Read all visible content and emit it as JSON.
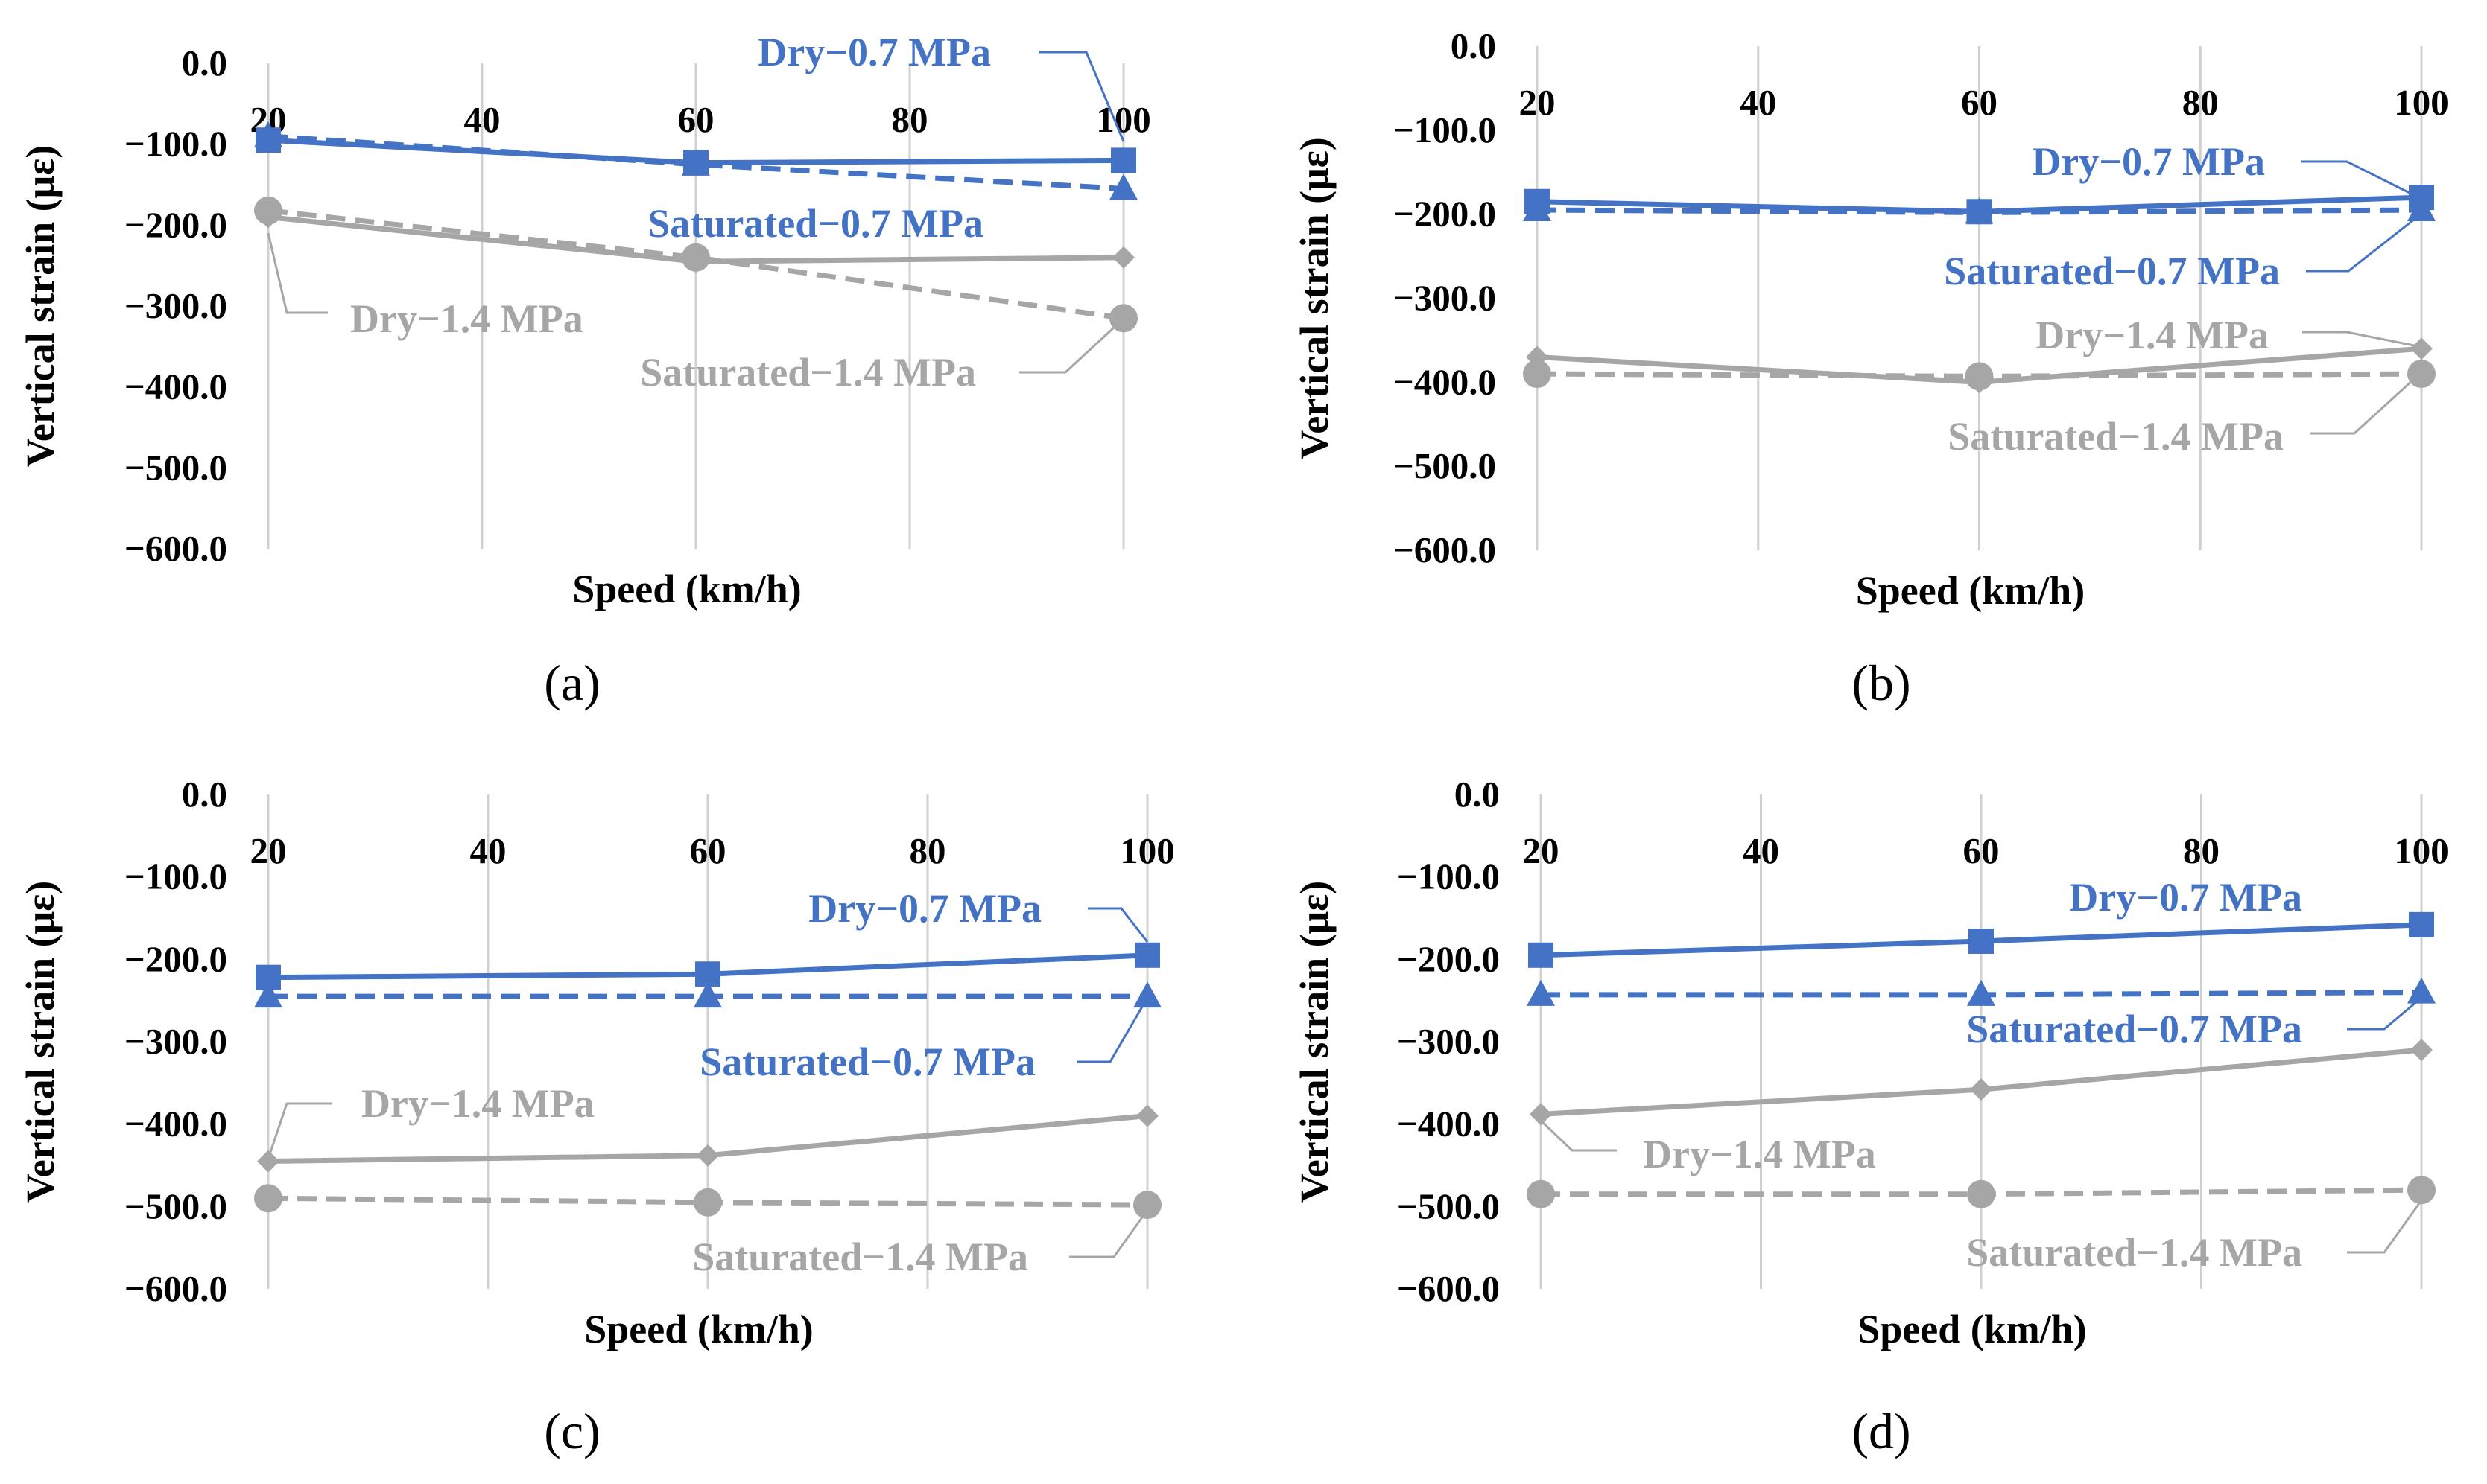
{
  "chart_data": [
    {
      "type": "line",
      "label": "(a)",
      "xlabel": "Speed (km/h)",
      "ylabel": "Vertical strain (με)",
      "xticks": [
        "20",
        "40",
        "60",
        "80",
        "100"
      ],
      "yticks": [
        "0.0",
        "-100.0",
        "-200.0",
        "-300.0",
        "-400.0",
        "-500.0",
        "-600.0"
      ],
      "xlim": [
        20,
        100
      ],
      "ylim": [
        -600,
        0
      ],
      "x": [
        20,
        60,
        100
      ],
      "series": [
        {
          "name": "Dry−0.7 MPa",
          "color": "#4472C4",
          "dash": "solid",
          "marker": "square",
          "values": [
            -95,
            -123,
            -120
          ]
        },
        {
          "name": "Saturated−0.7 MPa",
          "color": "#4472C4",
          "dash": "dashed",
          "marker": "triangle",
          "values": [
            -90,
            -125,
            -155
          ]
        },
        {
          "name": "Dry−1.4 MPa",
          "color": "#A6A6A6",
          "dash": "solid",
          "marker": "diamond",
          "values": [
            -190,
            -245,
            -240
          ]
        },
        {
          "name": "Saturated−1.4 MPa",
          "color": "#A6A6A6",
          "dash": "dashed",
          "marker": "circle",
          "values": [
            -182,
            -240,
            -315
          ]
        }
      ]
    },
    {
      "type": "line",
      "label": "(b)",
      "xlabel": "Speed (km/h)",
      "ylabel": "Vertical strain (με)",
      "xticks": [
        "20",
        "40",
        "60",
        "80",
        "100"
      ],
      "yticks": [
        "0.0",
        "-100.0",
        "-200.0",
        "-300.0",
        "-400.0",
        "-500.0",
        "-600.0"
      ],
      "xlim": [
        20,
        100
      ],
      "ylim": [
        -600,
        0
      ],
      "x": [
        20,
        60,
        100
      ],
      "series": [
        {
          "name": "Dry−0.7 MPa",
          "color": "#4472C4",
          "dash": "solid",
          "marker": "square",
          "values": [
            -185,
            -197,
            -180
          ]
        },
        {
          "name": "Saturated−0.7 MPa",
          "color": "#4472C4",
          "dash": "dashed",
          "marker": "triangle",
          "values": [
            -195,
            -198,
            -195
          ]
        },
        {
          "name": "Dry−1.4 MPa",
          "color": "#A6A6A6",
          "dash": "solid",
          "marker": "diamond",
          "values": [
            -370,
            -400,
            -360
          ]
        },
        {
          "name": "Saturated−1.4 MPa",
          "color": "#A6A6A6",
          "dash": "dashed",
          "marker": "circle",
          "values": [
            -390,
            -393,
            -390
          ]
        }
      ]
    },
    {
      "type": "line",
      "label": "(c)",
      "xlabel": "Speed (km/h)",
      "ylabel": "Vertical strain (με)",
      "xticks": [
        "20",
        "40",
        "60",
        "80",
        "100"
      ],
      "yticks": [
        "0.0",
        "-100.0",
        "-200.0",
        "-300.0",
        "-400.0",
        "-500.0",
        "-600.0"
      ],
      "xlim": [
        20,
        100
      ],
      "ylim": [
        -600,
        0
      ],
      "x": [
        20,
        60,
        100
      ],
      "series": [
        {
          "name": "Dry−0.7 MPa",
          "color": "#4472C4",
          "dash": "solid",
          "marker": "square",
          "values": [
            -222,
            -218,
            -195
          ]
        },
        {
          "name": "Saturated−0.7 MPa",
          "color": "#4472C4",
          "dash": "dashed",
          "marker": "triangle",
          "values": [
            -245,
            -245,
            -245
          ]
        },
        {
          "name": "Dry−1.4 MPa",
          "color": "#A6A6A6",
          "dash": "solid",
          "marker": "diamond",
          "values": [
            -445,
            -438,
            -390
          ]
        },
        {
          "name": "Saturated−1.4 MPa",
          "color": "#A6A6A6",
          "dash": "dashed",
          "marker": "circle",
          "values": [
            -490,
            -495,
            -498
          ]
        }
      ]
    },
    {
      "type": "line",
      "label": "(d)",
      "xlabel": "Speed (km/h)",
      "ylabel": "Vertical strain (με)",
      "xticks": [
        "20",
        "40",
        "60",
        "80",
        "100"
      ],
      "yticks": [
        "0.0",
        "-100.0",
        "-200.0",
        "-300.0",
        "-400.0",
        "-500.0",
        "-600.0"
      ],
      "xlim": [
        20,
        100
      ],
      "ylim": [
        -600,
        0
      ],
      "x": [
        20,
        60,
        100
      ],
      "series": [
        {
          "name": "Dry−0.7 MPa",
          "color": "#4472C4",
          "dash": "solid",
          "marker": "square",
          "values": [
            -195,
            -178,
            -158
          ]
        },
        {
          "name": "Saturated−0.7 MPa",
          "color": "#4472C4",
          "dash": "dashed",
          "marker": "triangle",
          "values": [
            -243,
            -243,
            -240
          ]
        },
        {
          "name": "Dry−1.4 MPa",
          "color": "#A6A6A6",
          "dash": "solid",
          "marker": "diamond",
          "values": [
            -388,
            -358,
            -310
          ]
        },
        {
          "name": "Saturated−1.4 MPa",
          "color": "#A6A6A6",
          "dash": "dashed",
          "marker": "circle",
          "values": [
            -485,
            -485,
            -480
          ]
        }
      ]
    }
  ]
}
